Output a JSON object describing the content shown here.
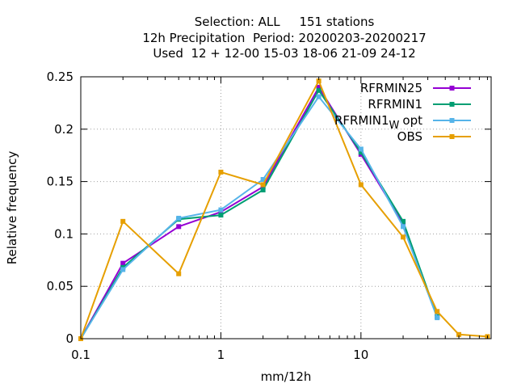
{
  "chart_data": {
    "type": "line",
    "title_lines": [
      "Selection: ALL     151 stations",
      "12h Precipitation  Period: 20200203-20200217",
      "Used  12 + 12-00 15-03 18-06 21-09 24-12"
    ],
    "xlabel": "mm/12h",
    "ylabel": "Relative frequency",
    "xscale": "log",
    "xlim": [
      0.1,
      85
    ],
    "ylim": [
      0,
      0.25
    ],
    "xticks": [
      {
        "value": 0.1,
        "label": "0.1"
      },
      {
        "value": 1,
        "label": "1"
      },
      {
        "value": 10,
        "label": "10"
      }
    ],
    "yticks": [
      {
        "value": 0,
        "label": "0"
      },
      {
        "value": 0.05,
        "label": "0.05"
      },
      {
        "value": 0.1,
        "label": "0.1"
      },
      {
        "value": 0.15,
        "label": "0.15"
      },
      {
        "value": 0.2,
        "label": "0.2"
      },
      {
        "value": 0.25,
        "label": "0.25"
      }
    ],
    "grid": true,
    "legend_position": "top-right",
    "series": [
      {
        "name": "RFRMIN25",
        "color": "#9400d3",
        "x": [
          0.1,
          0.2,
          0.5,
          1,
          2,
          5,
          10,
          20,
          35
        ],
        "y": [
          0,
          0.072,
          0.107,
          0.121,
          0.145,
          0.24,
          0.176,
          0.11,
          0.021
        ]
      },
      {
        "name": "RFRMIN1",
        "color": "#009e73",
        "x": [
          0.1,
          0.2,
          0.5,
          1,
          2,
          5,
          10,
          20,
          35
        ],
        "y": [
          0,
          0.068,
          0.114,
          0.118,
          0.142,
          0.237,
          0.178,
          0.112,
          0.021
        ]
      },
      {
        "name": "RFRMIN1_W opt",
        "name_main": "RFRMIN1",
        "name_sub": "W",
        "name_tail": "opt",
        "color": "#56b4e9",
        "x": [
          0.1,
          0.2,
          0.5,
          1,
          2,
          5,
          10,
          20,
          35
        ],
        "y": [
          0,
          0.066,
          0.115,
          0.123,
          0.152,
          0.231,
          0.181,
          0.107,
          0.02
        ]
      },
      {
        "name": "OBS",
        "color": "#e69f00",
        "x": [
          0.1,
          0.2,
          0.5,
          1,
          2,
          5,
          10,
          20,
          35,
          50,
          80
        ],
        "y": [
          0,
          0.112,
          0.062,
          0.159,
          0.147,
          0.246,
          0.147,
          0.097,
          0.026,
          0.004,
          0.002
        ]
      }
    ]
  }
}
